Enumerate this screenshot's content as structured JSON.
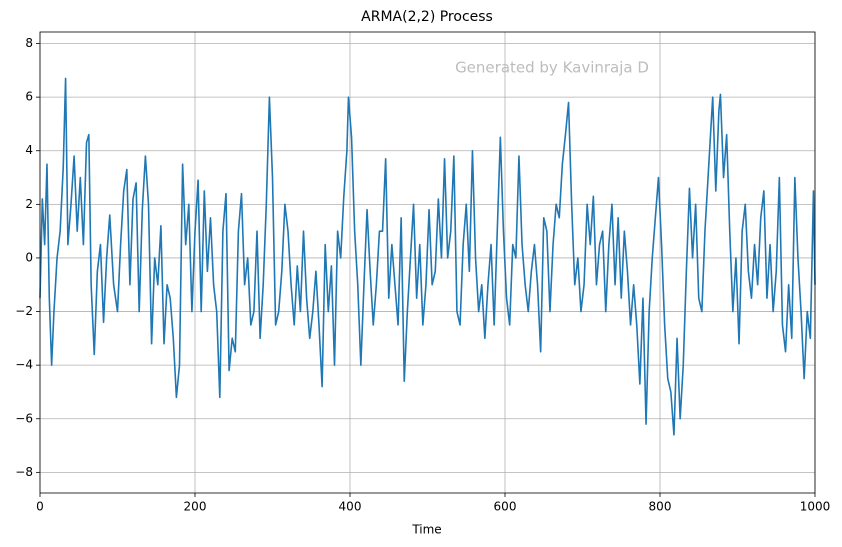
{
  "chart_data": {
    "type": "line",
    "title": "ARMA(2,2) Process",
    "xlabel": "Time",
    "annotation": "Generated by Kavinraja D",
    "color": "#1f77b4",
    "grid": true,
    "xlim": [
      0,
      1000
    ],
    "ylim": [
      -8.77,
      8.43
    ],
    "xticks": [
      0,
      200,
      400,
      600,
      800,
      1000
    ],
    "yticks": [
      {
        "value": -8,
        "label": "−8"
      },
      {
        "value": -6,
        "label": "−6"
      },
      {
        "value": -4,
        "label": "−4"
      },
      {
        "value": -2,
        "label": "−2"
      },
      0,
      2,
      4,
      6,
      8
    ],
    "x": [
      0,
      3,
      6,
      9,
      12,
      15,
      18,
      22,
      26,
      30,
      33,
      36,
      40,
      44,
      48,
      52,
      56,
      60,
      63,
      66,
      70,
      74,
      78,
      82,
      86,
      90,
      95,
      100,
      104,
      108,
      112,
      116,
      120,
      124,
      128,
      132,
      136,
      140,
      144,
      148,
      152,
      156,
      160,
      164,
      168,
      172,
      176,
      180,
      184,
      188,
      192,
      196,
      200,
      204,
      208,
      212,
      216,
      220,
      224,
      228,
      232,
      236,
      240,
      244,
      248,
      252,
      256,
      260,
      264,
      268,
      272,
      276,
      280,
      284,
      288,
      292,
      296,
      300,
      304,
      308,
      312,
      316,
      320,
      324,
      328,
      332,
      336,
      340,
      344,
      348,
      352,
      356,
      360,
      364,
      368,
      372,
      376,
      380,
      384,
      388,
      392,
      396,
      398,
      402,
      406,
      410,
      414,
      418,
      422,
      426,
      430,
      434,
      438,
      442,
      446,
      450,
      454,
      458,
      462,
      466,
      470,
      474,
      478,
      482,
      486,
      490,
      494,
      498,
      502,
      506,
      510,
      514,
      518,
      522,
      526,
      530,
      534,
      538,
      542,
      546,
      550,
      554,
      558,
      562,
      566,
      570,
      574,
      578,
      582,
      586,
      590,
      594,
      598,
      602,
      606,
      610,
      614,
      618,
      622,
      626,
      630,
      634,
      638,
      642,
      646,
      650,
      654,
      658,
      662,
      666,
      670,
      674,
      678,
      682,
      686,
      690,
      694,
      698,
      702,
      706,
      710,
      714,
      718,
      722,
      726,
      730,
      734,
      738,
      742,
      746,
      750,
      754,
      758,
      762,
      766,
      770,
      774,
      778,
      782,
      786,
      790,
      794,
      798,
      802,
      806,
      810,
      814,
      818,
      822,
      826,
      830,
      834,
      838,
      842,
      846,
      850,
      854,
      858,
      862,
      866,
      868,
      872,
      876,
      878,
      882,
      886,
      890,
      894,
      898,
      902,
      906,
      910,
      914,
      918,
      922,
      926,
      930,
      934,
      938,
      942,
      946,
      950,
      954,
      958,
      962,
      966,
      970,
      974,
      978,
      982,
      986,
      990,
      994,
      998,
      1000
    ],
    "values": [
      -1.5,
      2.2,
      0.5,
      3.5,
      -1.5,
      -4.0,
      -2.0,
      0.0,
      1.0,
      3.4,
      6.7,
      0.5,
      2.0,
      3.8,
      1.0,
      3.0,
      0.5,
      4.3,
      4.6,
      -1.0,
      -3.6,
      -0.5,
      0.5,
      -2.4,
      0.0,
      1.6,
      -1.0,
      -2.0,
      0.5,
      2.5,
      3.3,
      -1.0,
      2.2,
      2.8,
      -2.0,
      1.8,
      3.8,
      2.0,
      -3.2,
      0.0,
      -1.0,
      1.2,
      -3.2,
      -1.0,
      -1.5,
      -3.0,
      -5.2,
      -4.0,
      3.5,
      0.5,
      2.0,
      -2.0,
      1.0,
      2.9,
      -2.0,
      2.5,
      -0.5,
      1.5,
      -1.0,
      -2.0,
      -5.2,
      1.0,
      2.4,
      -4.2,
      -3.0,
      -3.5,
      1.0,
      2.4,
      -1.0,
      0.0,
      -2.5,
      -2.0,
      1.0,
      -3.0,
      -1.0,
      2.0,
      6.0,
      3.0,
      -2.5,
      -2.0,
      -0.5,
      2.0,
      1.0,
      -1.0,
      -2.5,
      -0.3,
      -2.0,
      1.0,
      -1.5,
      -3.0,
      -2.0,
      -0.5,
      -2.5,
      -4.8,
      0.5,
      -2.0,
      -0.3,
      -4.0,
      1.0,
      0.0,
      2.3,
      4.0,
      6.0,
      4.5,
      1.0,
      -1.0,
      -4.0,
      -1.0,
      1.8,
      -0.5,
      -2.5,
      -1.0,
      1.0,
      1.0,
      3.7,
      -1.5,
      0.5,
      -1.0,
      -2.5,
      1.5,
      -4.6,
      -2.0,
      0.0,
      2.0,
      -1.5,
      0.5,
      -2.5,
      -1.0,
      1.8,
      -1.0,
      -0.5,
      2.2,
      0.0,
      3.7,
      0.0,
      1.0,
      3.8,
      -2.0,
      -2.5,
      0.5,
      2.0,
      -0.5,
      4.0,
      0.0,
      -2.0,
      -1.0,
      -3.0,
      -1.0,
      0.5,
      -2.5,
      1.0,
      4.5,
      1.0,
      -1.5,
      -2.5,
      0.5,
      0.0,
      3.8,
      0.5,
      -1.0,
      -2.0,
      -0.5,
      0.5,
      -1.0,
      -3.5,
      1.5,
      1.0,
      -2.0,
      0.5,
      2.0,
      1.5,
      3.5,
      4.6,
      5.8,
      2.0,
      -1.0,
      0.0,
      -2.0,
      -1.0,
      2.0,
      0.5,
      2.3,
      -1.0,
      0.5,
      1.0,
      -2.0,
      0.5,
      2.0,
      -1.0,
      1.5,
      -1.5,
      1.0,
      -0.5,
      -2.5,
      -1.0,
      -2.5,
      -4.7,
      -1.5,
      -6.2,
      -2.0,
      0.0,
      1.5,
      3.0,
      0.5,
      -2.5,
      -4.5,
      -5.0,
      -6.6,
      -3.0,
      -6.0,
      -4.0,
      -0.5,
      2.6,
      0.0,
      2.0,
      -1.5,
      -2.0,
      1.0,
      3.0,
      5.0,
      6.0,
      2.5,
      5.5,
      6.1,
      3.0,
      4.6,
      1.0,
      -2.0,
      0.0,
      -3.2,
      1.0,
      2.0,
      -0.5,
      -1.5,
      0.5,
      -1.0,
      1.5,
      2.5,
      -1.5,
      0.5,
      -2.0,
      -0.5,
      3.0,
      -2.5,
      -3.5,
      -1.0,
      -3.0,
      3.0,
      0.0,
      -2.0,
      -4.5,
      -2.0,
      -3.0,
      2.5,
      -1.0
    ]
  }
}
